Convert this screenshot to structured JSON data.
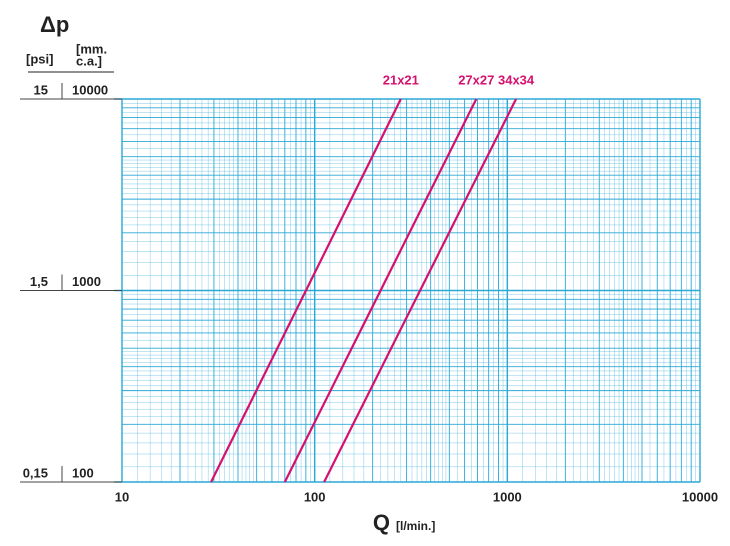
{
  "chart_data": {
    "type": "line",
    "title": "Δp",
    "y_label": "[psi]",
    "y2_label": [
      "[mm.",
      "c.a.]"
    ],
    "x_label": "Q",
    "x_unit": "[l/min.]",
    "x_scale": "log",
    "y_scale": "log",
    "grid": true,
    "xlim": [
      10,
      10000
    ],
    "xticks": [
      10,
      100,
      1000,
      10000
    ],
    "ylim": [
      100,
      10000
    ],
    "yticks": [
      100,
      1000,
      10000
    ],
    "y2lim": [
      0.15,
      15
    ],
    "y2ticks": [
      {
        "value": 0.15,
        "label": "0,15"
      },
      {
        "value": 1.5,
        "label": "1,5"
      },
      15
    ],
    "series": [
      {
        "name": "21x21",
        "color": "#d6106e",
        "x": [
          29,
          280
        ],
        "values": [
          100,
          10000
        ]
      },
      {
        "name": "27x27",
        "color": "#d6106e",
        "x": [
          70,
          690
        ],
        "values": [
          100,
          10000
        ]
      },
      {
        "name": "34x34",
        "color": "#d6106e",
        "x": [
          112,
          1110
        ],
        "values": [
          100,
          10000
        ]
      }
    ]
  }
}
